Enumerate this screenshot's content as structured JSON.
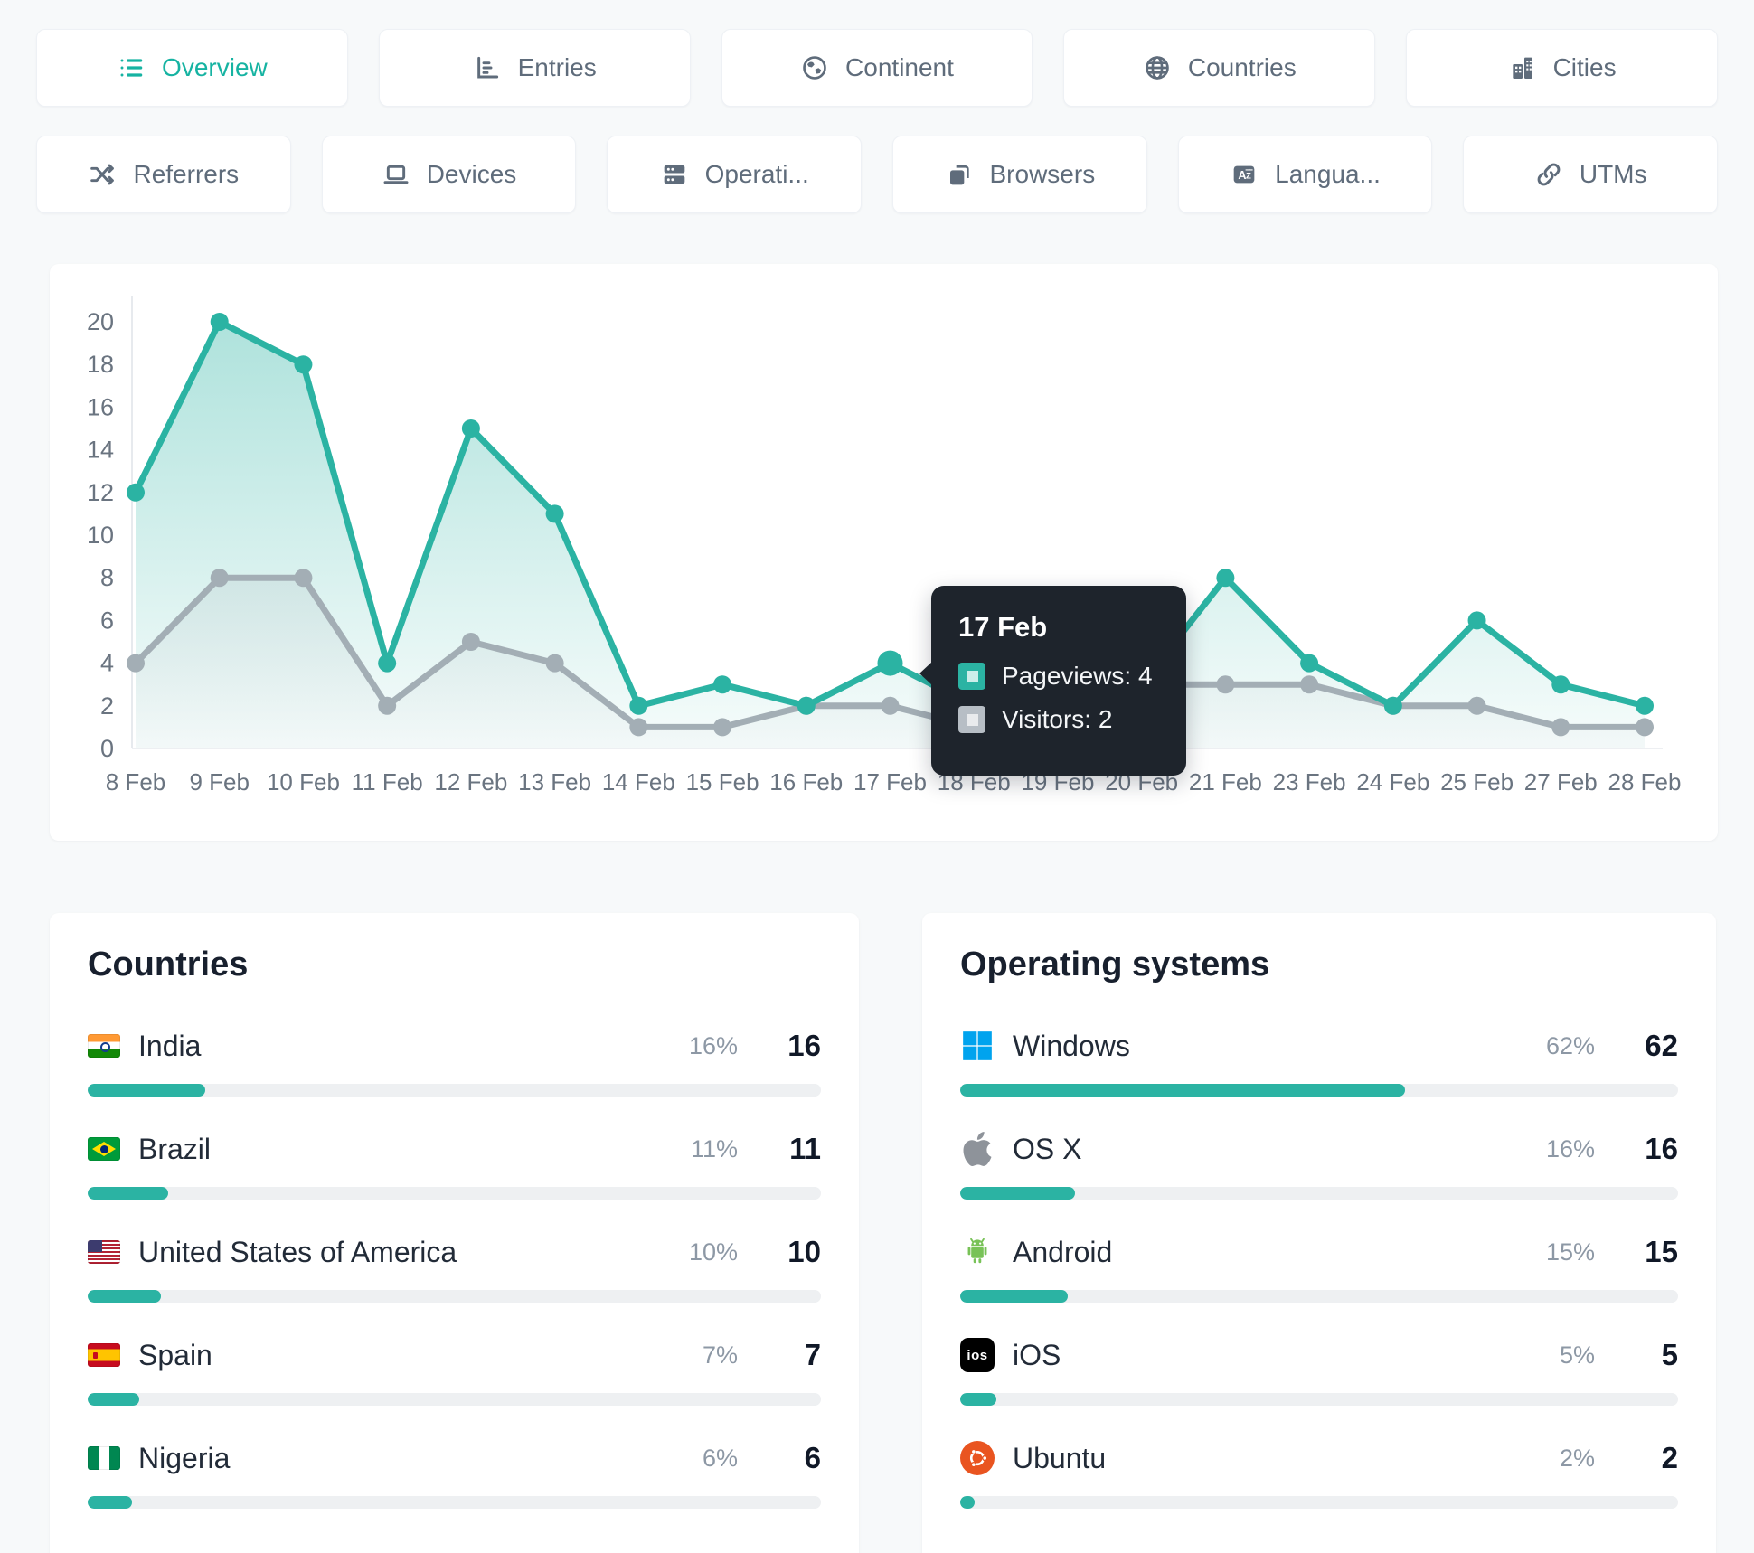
{
  "colors": {
    "accent_teal": "#16b3a2",
    "pageviews_line": "#2bb3a3",
    "visitors_line": "#a3aeb5",
    "tooltip_bg": "#1e242c",
    "card_bg": "#ffffff",
    "page_bg": "#f7f9fa",
    "windows_blue": "#00a3ee",
    "ubuntu_orange": "#e95420"
  },
  "tabs_row1": [
    {
      "label": "Overview",
      "icon": "list-icon",
      "active": true
    },
    {
      "label": "Entries",
      "icon": "bar-chart-icon",
      "active": false
    },
    {
      "label": "Continent",
      "icon": "earth-icon",
      "active": false
    },
    {
      "label": "Countries",
      "icon": "globe-icon",
      "active": false
    },
    {
      "label": "Cities",
      "icon": "buildings-icon",
      "active": false
    }
  ],
  "tabs_row2": [
    {
      "label": "Referrers",
      "icon": "shuffle-icon",
      "active": false
    },
    {
      "label": "Devices",
      "icon": "laptop-icon",
      "active": false
    },
    {
      "label": "Operati...",
      "icon": "server-icon",
      "active": false
    },
    {
      "label": "Browsers",
      "icon": "browser-window-icon",
      "active": false
    },
    {
      "label": "Langua...",
      "icon": "translate-icon",
      "active": false
    },
    {
      "label": "UTMs",
      "icon": "link-icon",
      "active": false
    }
  ],
  "chart_data": {
    "type": "line",
    "x_labels": [
      "8 Feb",
      "9 Feb",
      "10 Feb",
      "11 Feb",
      "12 Feb",
      "13 Feb",
      "14 Feb",
      "15 Feb",
      "16 Feb",
      "17 Feb",
      "18 Feb",
      "19 Feb",
      "20 Feb",
      "21 Feb",
      "23 Feb",
      "24 Feb",
      "25 Feb",
      "27 Feb",
      "28 Feb"
    ],
    "ylim": [
      0,
      20
    ],
    "ytick_step": 2,
    "grid": false,
    "legend_position": "none",
    "series": [
      {
        "name": "Pageviews",
        "color": "#2bb3a3",
        "values": [
          12,
          20,
          18,
          4,
          15,
          11,
          2,
          3,
          2,
          4,
          2,
          2,
          3,
          8,
          4,
          2,
          6,
          3,
          2
        ]
      },
      {
        "name": "Visitors",
        "color": "#a3aeb5",
        "values": [
          4,
          8,
          8,
          2,
          5,
          4,
          1,
          1,
          2,
          2,
          1,
          1,
          3,
          3,
          3,
          2,
          2,
          1,
          1
        ]
      }
    ],
    "highlight": {
      "series": 0,
      "index": 9
    }
  },
  "tooltip": {
    "date": "17 Feb",
    "rows": [
      {
        "text": "Pageviews: 4",
        "swatch_color": "#2bb3a3"
      },
      {
        "text": "Visitors: 2",
        "swatch_color": "#b7bec5"
      }
    ]
  },
  "countries": {
    "title": "Countries",
    "rows": [
      {
        "flag": "india-flag",
        "name": "India",
        "percent": "16%",
        "count": "16",
        "bar_pct": 16
      },
      {
        "flag": "brazil-flag",
        "name": "Brazil",
        "percent": "11%",
        "count": "11",
        "bar_pct": 11
      },
      {
        "flag": "usa-flag",
        "name": "United States of America",
        "percent": "10%",
        "count": "10",
        "bar_pct": 10
      },
      {
        "flag": "spain-flag",
        "name": "Spain",
        "percent": "7%",
        "count": "7",
        "bar_pct": 7
      },
      {
        "flag": "nigeria-flag",
        "name": "Nigeria",
        "percent": "6%",
        "count": "6",
        "bar_pct": 6
      }
    ]
  },
  "operating_systems": {
    "title": "Operating systems",
    "rows": [
      {
        "icon": "windows-icon",
        "name": "Windows",
        "percent": "62%",
        "count": "62",
        "bar_pct": 62
      },
      {
        "icon": "apple-icon",
        "name": "OS X",
        "percent": "16%",
        "count": "16",
        "bar_pct": 16
      },
      {
        "icon": "android-icon",
        "name": "Android",
        "percent": "15%",
        "count": "15",
        "bar_pct": 15
      },
      {
        "icon": "ios-icon",
        "icon_text": "ios",
        "name": "iOS",
        "percent": "5%",
        "count": "5",
        "bar_pct": 5
      },
      {
        "icon": "ubuntu-icon",
        "name": "Ubuntu",
        "percent": "2%",
        "count": "2",
        "bar_pct": 2
      }
    ]
  }
}
